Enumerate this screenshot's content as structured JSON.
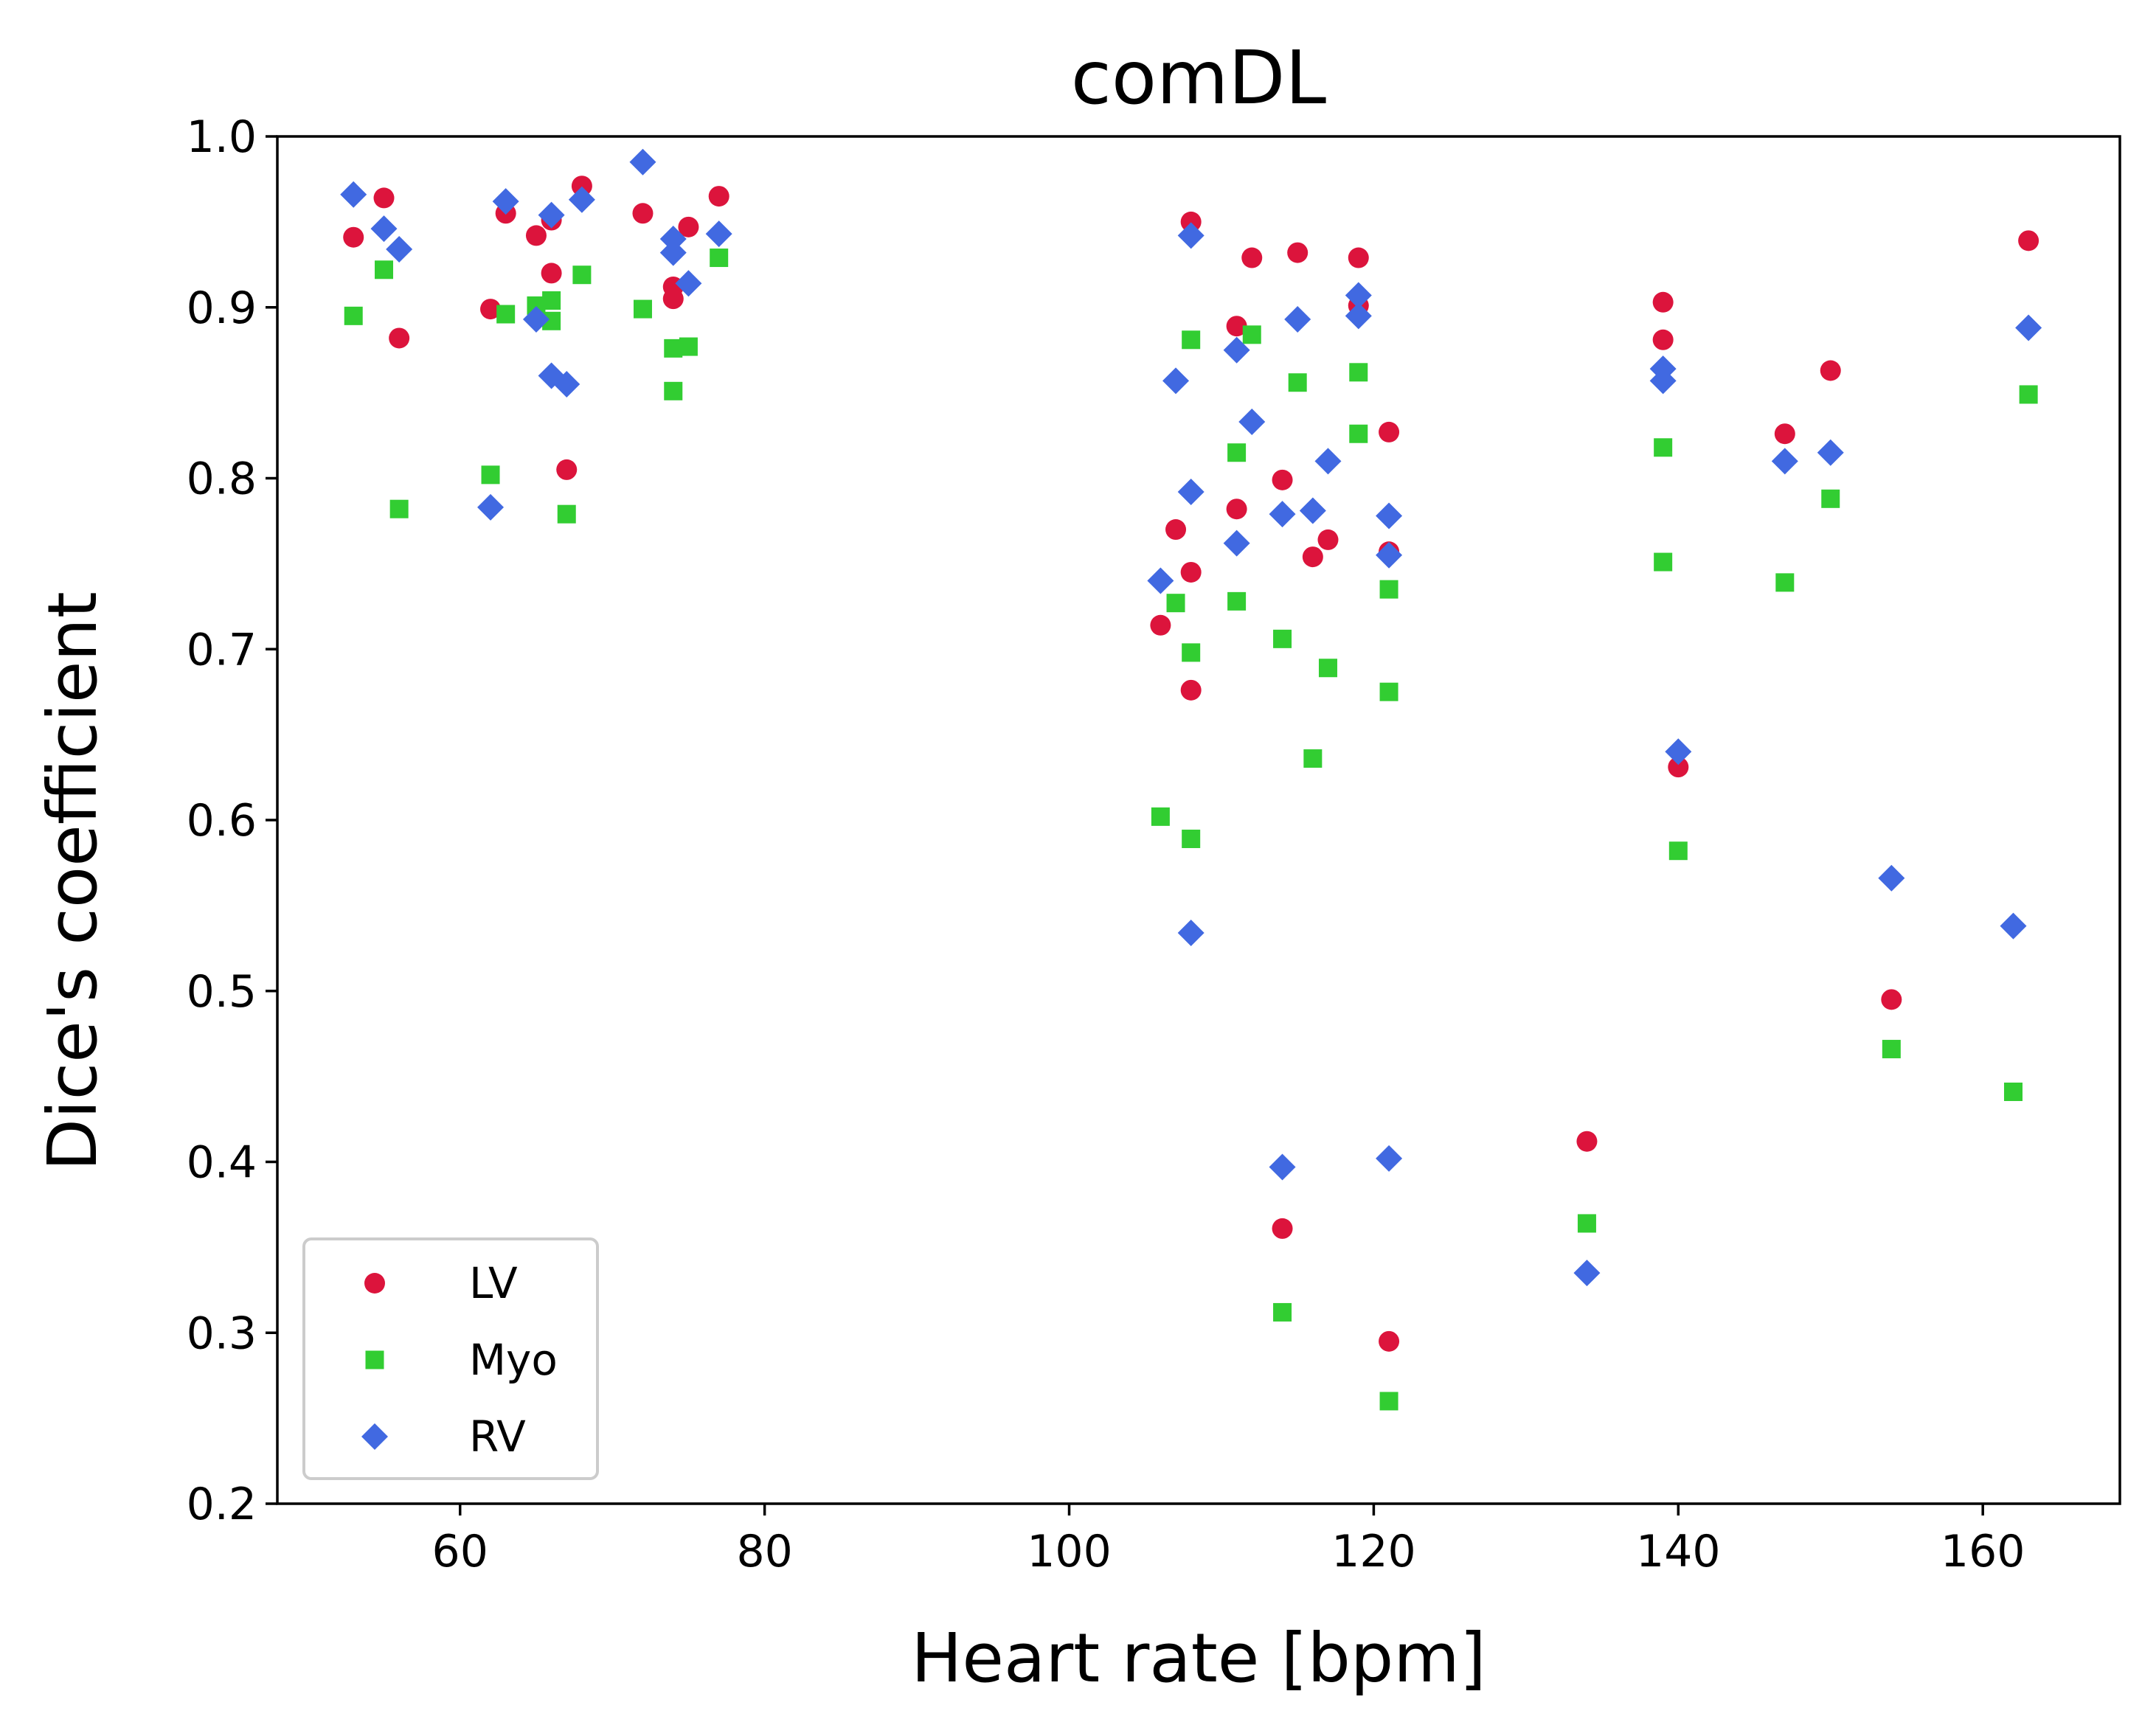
{
  "chart_data": {
    "type": "scatter",
    "title": "comDL",
    "xlabel": "Heart rate [bpm]",
    "ylabel": "Dice's coefficient",
    "xlim": [
      48,
      169
    ],
    "ylim": [
      0.2,
      1.0
    ],
    "xticks": [
      60,
      80,
      100,
      120,
      140,
      160
    ],
    "yticks": [
      0.2,
      0.3,
      0.4,
      0.5,
      0.6,
      0.7,
      0.8,
      0.9,
      1.0
    ],
    "ytick_labels": [
      "0.2",
      "0.3",
      "0.4",
      "0.5",
      "0.6",
      "0.7",
      "0.8",
      "0.9",
      "1.0"
    ],
    "grid": false,
    "legend_position": "lower-left",
    "series": [
      {
        "name": "LV",
        "marker": "circle",
        "color": "#dc143c",
        "points": [
          [
            53,
            0.941
          ],
          [
            55,
            0.964
          ],
          [
            56,
            0.882
          ],
          [
            62,
            0.899
          ],
          [
            63,
            0.955
          ],
          [
            65,
            0.942
          ],
          [
            66,
            0.951
          ],
          [
            66,
            0.92
          ],
          [
            67,
            0.805
          ],
          [
            68,
            0.971
          ],
          [
            72,
            0.955
          ],
          [
            74,
            0.912
          ],
          [
            74,
            0.905
          ],
          [
            75,
            0.947
          ],
          [
            77,
            0.965
          ],
          [
            106,
            0.714
          ],
          [
            107,
            0.77
          ],
          [
            108,
            0.95
          ],
          [
            108,
            0.745
          ],
          [
            108,
            0.676
          ],
          [
            111,
            0.889
          ],
          [
            111,
            0.782
          ],
          [
            112,
            0.929
          ],
          [
            114,
            0.799
          ],
          [
            114,
            0.361
          ],
          [
            115,
            0.932
          ],
          [
            116,
            0.754
          ],
          [
            117,
            0.764
          ],
          [
            119,
            0.929
          ],
          [
            119,
            0.901
          ],
          [
            121,
            0.827
          ],
          [
            121,
            0.757
          ],
          [
            121,
            0.295
          ],
          [
            134,
            0.412
          ],
          [
            139,
            0.903
          ],
          [
            139,
            0.881
          ],
          [
            140,
            0.631
          ],
          [
            147,
            0.826
          ],
          [
            150,
            0.863
          ],
          [
            154,
            0.495
          ],
          [
            163,
            0.939
          ]
        ]
      },
      {
        "name": "Myo",
        "marker": "square",
        "color": "#32cd32",
        "points": [
          [
            53,
            0.895
          ],
          [
            55,
            0.922
          ],
          [
            56,
            0.782
          ],
          [
            62,
            0.802
          ],
          [
            63,
            0.896
          ],
          [
            65,
            0.901
          ],
          [
            66,
            0.904
          ],
          [
            66,
            0.892
          ],
          [
            67,
            0.779
          ],
          [
            68,
            0.919
          ],
          [
            72,
            0.899
          ],
          [
            74,
            0.876
          ],
          [
            74,
            0.851
          ],
          [
            75,
            0.877
          ],
          [
            77,
            0.929
          ],
          [
            106,
            0.602
          ],
          [
            107,
            0.727
          ],
          [
            108,
            0.881
          ],
          [
            108,
            0.698
          ],
          [
            108,
            0.589
          ],
          [
            111,
            0.815
          ],
          [
            111,
            0.728
          ],
          [
            112,
            0.884
          ],
          [
            114,
            0.706
          ],
          [
            114,
            0.312
          ],
          [
            115,
            0.856
          ],
          [
            116,
            0.636
          ],
          [
            117,
            0.689
          ],
          [
            119,
            0.862
          ],
          [
            119,
            0.826
          ],
          [
            121,
            0.735
          ],
          [
            121,
            0.675
          ],
          [
            121,
            0.26
          ],
          [
            134,
            0.364
          ],
          [
            139,
            0.818
          ],
          [
            139,
            0.751
          ],
          [
            140,
            0.582
          ],
          [
            147,
            0.739
          ],
          [
            150,
            0.788
          ],
          [
            154,
            0.466
          ],
          [
            162,
            0.441
          ],
          [
            163,
            0.849
          ]
        ]
      },
      {
        "name": "RV",
        "marker": "diamond",
        "color": "#4169e1",
        "points": [
          [
            53,
            0.966
          ],
          [
            55,
            0.946
          ],
          [
            56,
            0.934
          ],
          [
            62,
            0.783
          ],
          [
            63,
            0.962
          ],
          [
            65,
            0.893
          ],
          [
            66,
            0.954
          ],
          [
            66,
            0.86
          ],
          [
            67,
            0.855
          ],
          [
            68,
            0.963
          ],
          [
            72,
            0.985
          ],
          [
            74,
            0.94
          ],
          [
            74,
            0.932
          ],
          [
            75,
            0.914
          ],
          [
            77,
            0.943
          ],
          [
            106,
            0.74
          ],
          [
            107,
            0.857
          ],
          [
            108,
            0.942
          ],
          [
            108,
            0.792
          ],
          [
            108,
            0.534
          ],
          [
            111,
            0.875
          ],
          [
            111,
            0.762
          ],
          [
            112,
            0.833
          ],
          [
            114,
            0.779
          ],
          [
            114,
            0.397
          ],
          [
            115,
            0.893
          ],
          [
            116,
            0.781
          ],
          [
            117,
            0.81
          ],
          [
            119,
            0.907
          ],
          [
            119,
            0.895
          ],
          [
            121,
            0.778
          ],
          [
            121,
            0.755
          ],
          [
            121,
            0.402
          ],
          [
            134,
            0.335
          ],
          [
            139,
            0.864
          ],
          [
            139,
            0.857
          ],
          [
            140,
            0.64
          ],
          [
            147,
            0.81
          ],
          [
            150,
            0.815
          ],
          [
            154,
            0.566
          ],
          [
            162,
            0.538
          ],
          [
            163,
            0.888
          ]
        ]
      }
    ]
  }
}
